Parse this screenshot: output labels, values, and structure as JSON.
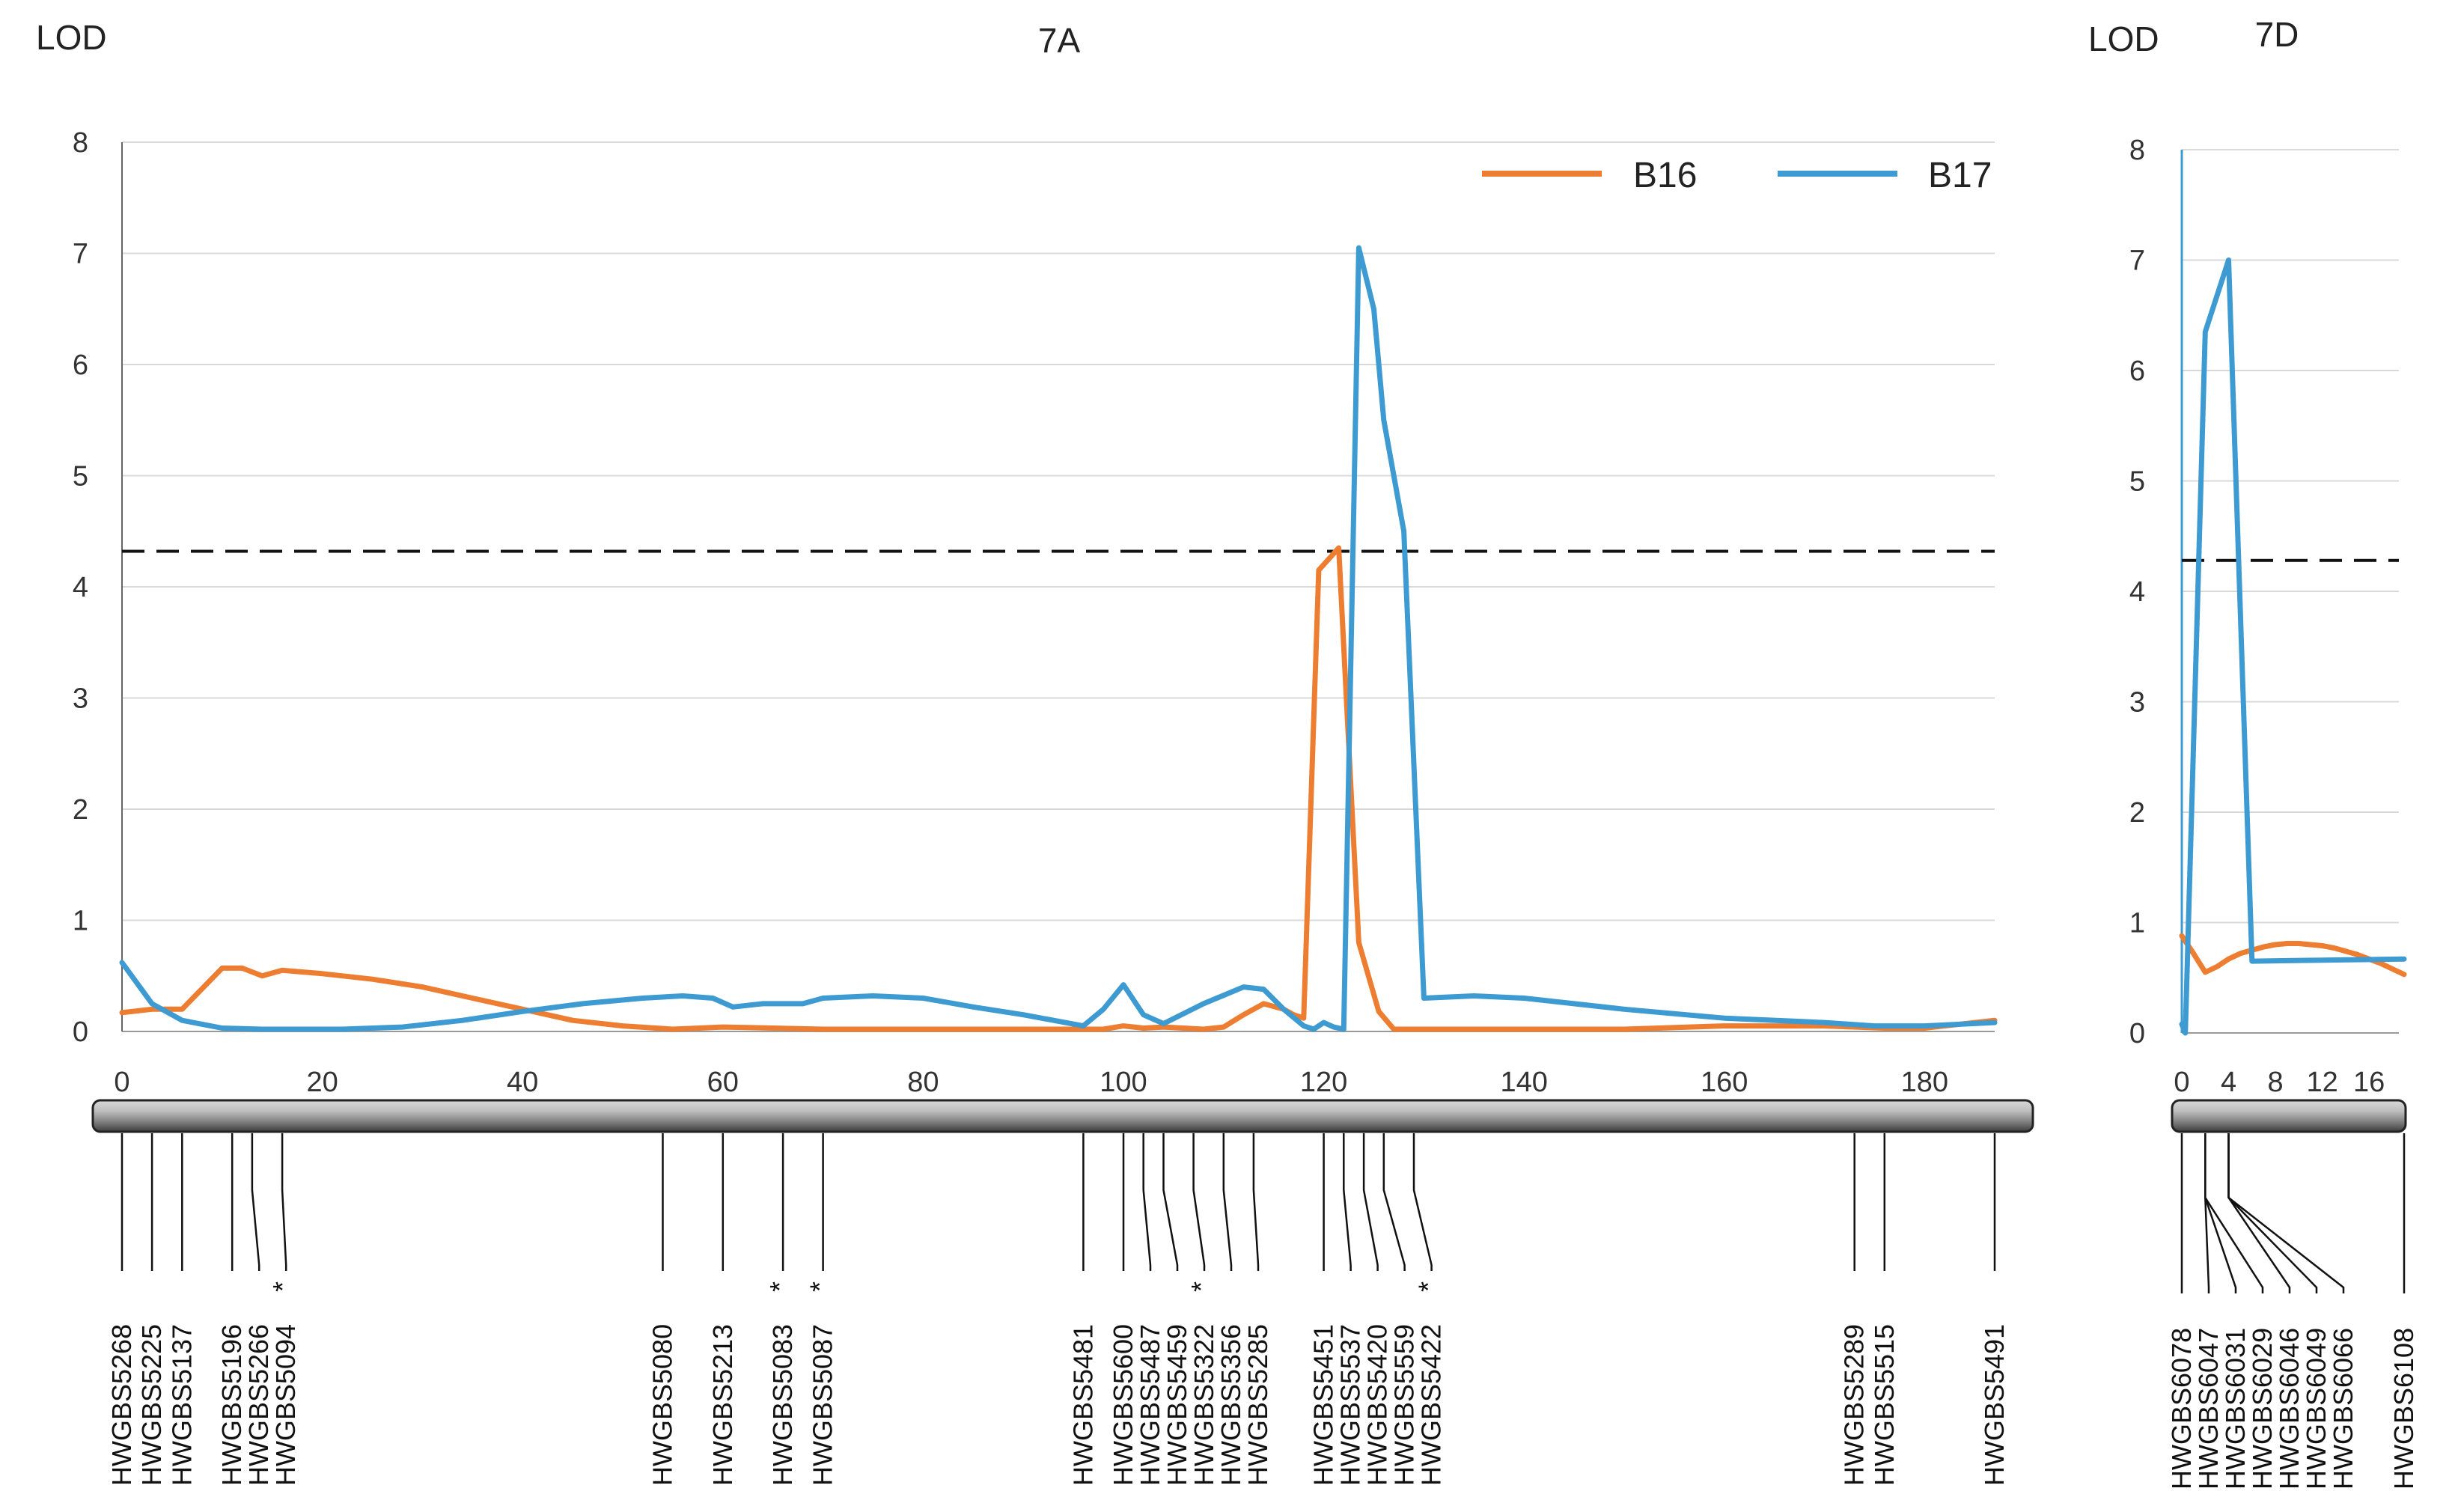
{
  "chart_data": [
    {
      "panel": "7A",
      "type": "line",
      "title": "7A",
      "ylabel": "LOD",
      "xlabel": "",
      "xlim": [
        0,
        187
      ],
      "ylim": [
        0,
        8
      ],
      "xticks": [
        0,
        20,
        40,
        60,
        80,
        100,
        120,
        140,
        160,
        180
      ],
      "yticks": [
        0,
        1,
        2,
        3,
        4,
        5,
        6,
        7,
        8
      ],
      "grid": true,
      "legend_position": "top-right",
      "threshold": 4.32,
      "series": [
        {
          "name": "B16",
          "color": "#ed7d31",
          "x": [
            0,
            3,
            6,
            10,
            12,
            14,
            16,
            20,
            25,
            30,
            35,
            40,
            45,
            50,
            55,
            60,
            65,
            70,
            80,
            90,
            95,
            98,
            100,
            102,
            104,
            106,
            108,
            110,
            112,
            114,
            116,
            117,
            118,
            119.5,
            121.5,
            123.5,
            125.5,
            127,
            130,
            140,
            150,
            160,
            170,
            176,
            180,
            187
          ],
          "y": [
            0.17,
            0.2,
            0.2,
            0.57,
            0.57,
            0.5,
            0.55,
            0.52,
            0.47,
            0.4,
            0.3,
            0.2,
            0.1,
            0.05,
            0.02,
            0.04,
            0.03,
            0.02,
            0.02,
            0.02,
            0.02,
            0.02,
            0.05,
            0.03,
            0.04,
            0.03,
            0.02,
            0.04,
            0.15,
            0.25,
            0.2,
            0.15,
            0.12,
            4.15,
            4.35,
            0.8,
            0.18,
            0.02,
            0.02,
            0.02,
            0.02,
            0.05,
            0.05,
            0.03,
            0.03,
            0.1
          ]
        },
        {
          "name": "B17",
          "color": "#3d9bd2",
          "x": [
            0,
            3,
            6,
            10,
            14,
            18,
            22,
            28,
            34,
            40,
            46,
            52,
            56,
            59,
            61,
            64,
            66,
            68,
            70,
            75,
            80,
            85,
            90,
            96,
            98,
            100,
            102,
            104,
            108,
            112,
            114,
            116,
            118,
            119,
            120,
            121,
            122,
            123.5,
            125,
            126,
            128,
            130,
            135,
            140,
            150,
            160,
            170,
            175,
            180,
            187
          ],
          "y": [
            0.62,
            0.25,
            0.1,
            0.03,
            0.02,
            0.02,
            0.02,
            0.04,
            0.1,
            0.18,
            0.25,
            0.3,
            0.32,
            0.3,
            0.22,
            0.25,
            0.25,
            0.25,
            0.3,
            0.32,
            0.3,
            0.22,
            0.15,
            0.05,
            0.2,
            0.42,
            0.15,
            0.07,
            0.25,
            0.4,
            0.38,
            0.2,
            0.05,
            0.02,
            0.08,
            0.04,
            0.02,
            7.05,
            6.5,
            5.5,
            4.5,
            0.3,
            0.32,
            0.3,
            0.2,
            0.12,
            0.08,
            0.05,
            0.05,
            0.08
          ]
        }
      ],
      "markers": [
        {
          "label": "HWGBS5268",
          "position": 0
        },
        {
          "label": "HWGBS5225",
          "position": 3
        },
        {
          "label": "HWGBS5137",
          "position": 6
        },
        {
          "label": "HWGBS5196",
          "position": 11
        },
        {
          "label": "HWGBS5266",
          "position": 13
        },
        {
          "label": "HWGBS5094",
          "position": 16,
          "star": "*"
        },
        {
          "label": "HWGBS5080",
          "position": 54
        },
        {
          "label": "HWGBS5213",
          "position": 60
        },
        {
          "label": "HWGBS5083",
          "position": 66,
          "star": "*"
        },
        {
          "label": "HWGBS5087",
          "position": 70,
          "star": "*"
        },
        {
          "label": "HWGBS5481",
          "position": 96
        },
        {
          "label": "HWGBS5600",
          "position": 100
        },
        {
          "label": "HWGBS5487",
          "position": 102
        },
        {
          "label": "HWGBS5459",
          "position": 104
        },
        {
          "label": "HWGBS5322",
          "position": 107,
          "star": "*"
        },
        {
          "label": "HWGBS5356",
          "position": 110
        },
        {
          "label": "HWGBS5285",
          "position": 113
        },
        {
          "label": "HWGBS5451",
          "position": 120
        },
        {
          "label": "HWGBS5537",
          "position": 122
        },
        {
          "label": "HWGBS5420",
          "position": 124
        },
        {
          "label": "HWGBS5559",
          "position": 126
        },
        {
          "label": "HWGBS5422",
          "position": 129,
          "star": "*"
        },
        {
          "label": "HWGBS5289",
          "position": 173
        },
        {
          "label": "HWGBS5515",
          "position": 176
        },
        {
          "label": "HWGBS5491",
          "position": 187
        }
      ]
    },
    {
      "panel": "7D",
      "type": "line",
      "title": "7D",
      "ylabel": "LOD",
      "xlabel": "",
      "xlim": [
        0,
        19
      ],
      "ylim": [
        0,
        8
      ],
      "xticks": [
        0,
        4,
        8,
        12,
        16
      ],
      "yticks": [
        0,
        1,
        2,
        3,
        4,
        5,
        6,
        7,
        8
      ],
      "grid": true,
      "threshold": 4.28,
      "series": [
        {
          "name": "B16",
          "color": "#ed7d31",
          "x": [
            0,
            1,
            2,
            3,
            4,
            5,
            6,
            7,
            8,
            9,
            10,
            11,
            12,
            13,
            14,
            15,
            16,
            17,
            18,
            19
          ],
          "y": [
            0.88,
            0.72,
            0.55,
            0.6,
            0.67,
            0.72,
            0.75,
            0.78,
            0.8,
            0.81,
            0.81,
            0.8,
            0.79,
            0.77,
            0.74,
            0.71,
            0.67,
            0.63,
            0.58,
            0.53
          ]
        },
        {
          "name": "B17",
          "color": "#3d9bd2",
          "x": [
            0,
            0.3,
            2,
            4,
            6,
            19
          ],
          "y": [
            0.08,
            0.0,
            6.35,
            7.0,
            0.65,
            0.67
          ]
        }
      ],
      "markers": [
        {
          "label": "HWGBS6078",
          "position": 0
        },
        {
          "label": "HWGBS6047",
          "position": 2
        },
        {
          "label": "HWGBS6031",
          "position": 2
        },
        {
          "label": "HWGBS6029",
          "position": 2
        },
        {
          "label": "HWGBS6046",
          "position": 4
        },
        {
          "label": "HWGBS6049",
          "position": 4
        },
        {
          "label": "HWGBS6066",
          "position": 4
        },
        {
          "label": "HWGBS6108",
          "position": 19
        }
      ]
    }
  ]
}
